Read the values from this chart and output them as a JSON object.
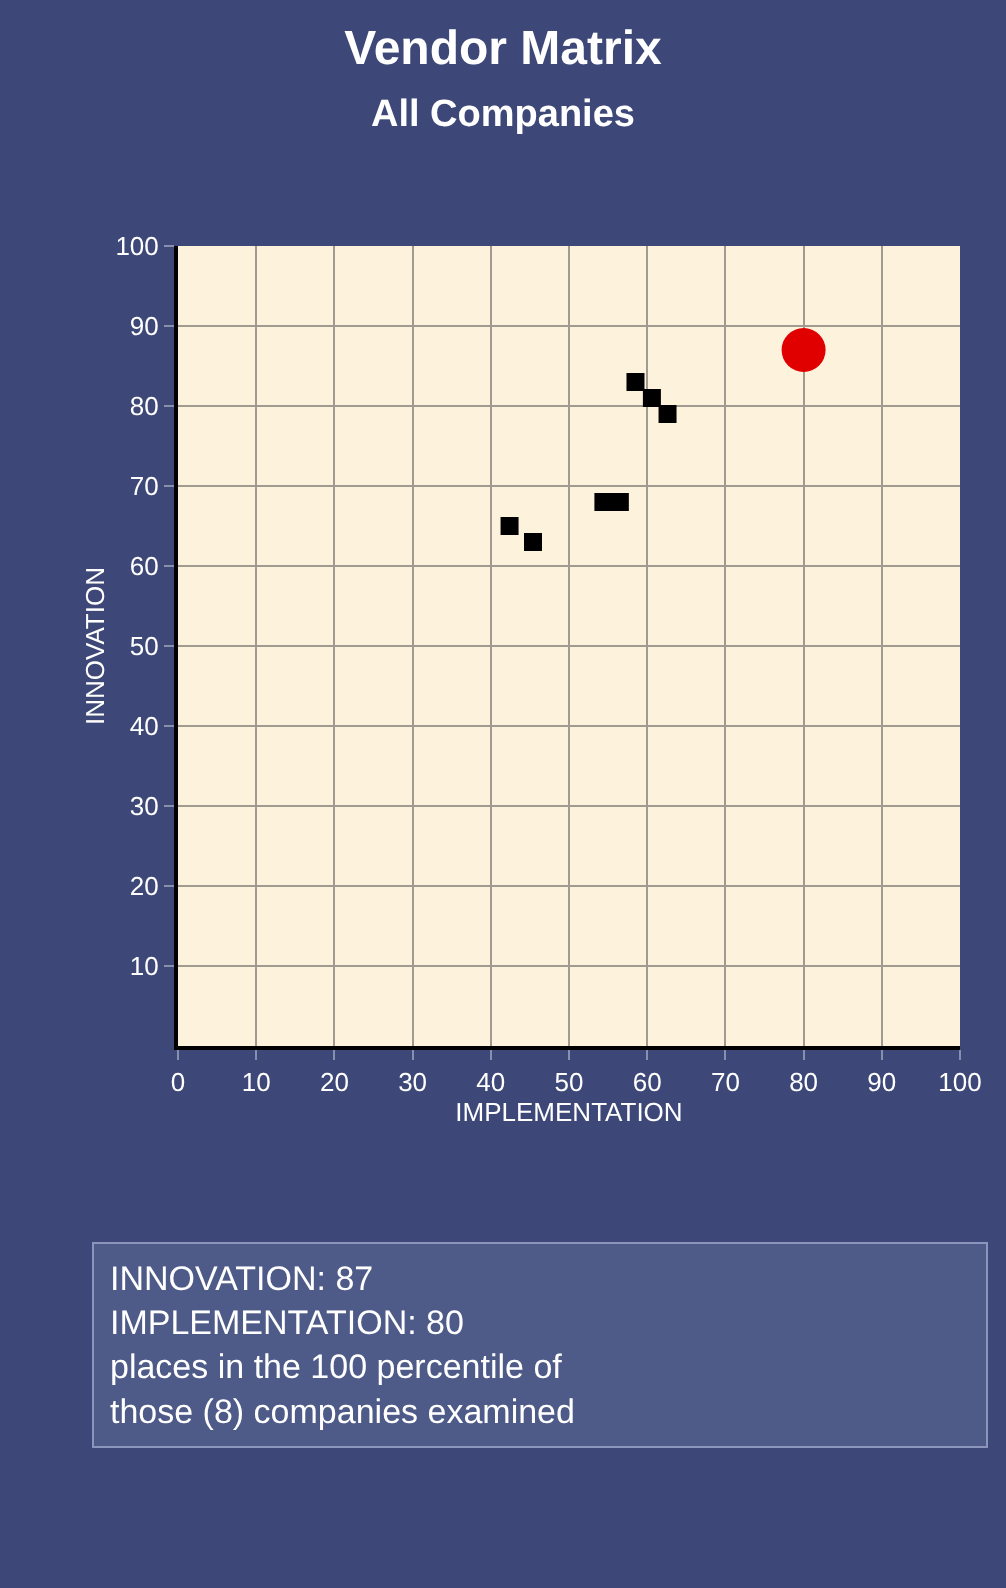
{
  "chart_data": {
    "type": "scatter",
    "title": "Vendor Matrix",
    "subtitle": "All Companies",
    "xlabel": "IMPLEMENTATION",
    "ylabel": "INNOVATION",
    "series": [
      {
        "color": "#000000",
        "marker": "square",
        "x": [
          58.5,
          60.6,
          62.6,
          54.4,
          56.5,
          42.4,
          45.4
        ],
        "values": [
          83,
          81,
          79,
          68,
          68,
          65,
          63
        ]
      },
      {
        "color": "#e00000",
        "marker": "circle",
        "x": [
          80
        ],
        "values": [
          87
        ]
      }
    ],
    "xlim": [
      0,
      100
    ],
    "ylim": [
      0,
      100
    ],
    "xticks": [
      0,
      10,
      20,
      30,
      40,
      50,
      60,
      70,
      80,
      90,
      100
    ],
    "yticks": [
      10,
      20,
      30,
      40,
      50,
      60,
      70,
      80,
      90,
      100
    ],
    "grid": true,
    "annotations": [
      "INNOVATION: 87",
      "IMPLEMENTATION: 80",
      "places in the 100 percentile of those (8) companies examined"
    ]
  }
}
